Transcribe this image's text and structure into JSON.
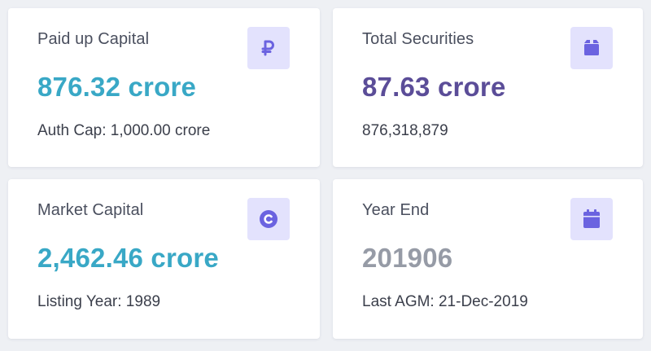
{
  "colors": {
    "teal_value": "#39a8c6",
    "purple_value": "#5b4d98",
    "gray_value": "#969ba6",
    "icon_bg": "#e3e2fd",
    "icon_fg": "#6b63e0"
  },
  "cards": [
    {
      "label": "Paid up Capital",
      "value": "876.32 crore",
      "sub": "Auth Cap: 1,000.00 crore",
      "icon": "ruble-icon"
    },
    {
      "label": "Total Securities",
      "value": "87.63 crore",
      "sub": "876,318,879",
      "icon": "box-icon"
    },
    {
      "label": "Market Capital",
      "value": "2,462.46 crore",
      "sub": "Listing Year: 1989",
      "icon": "copyright-icon"
    },
    {
      "label": "Year End",
      "value": "201906",
      "sub": "Last AGM: 21-Dec-2019",
      "icon": "calendar-icon"
    }
  ]
}
